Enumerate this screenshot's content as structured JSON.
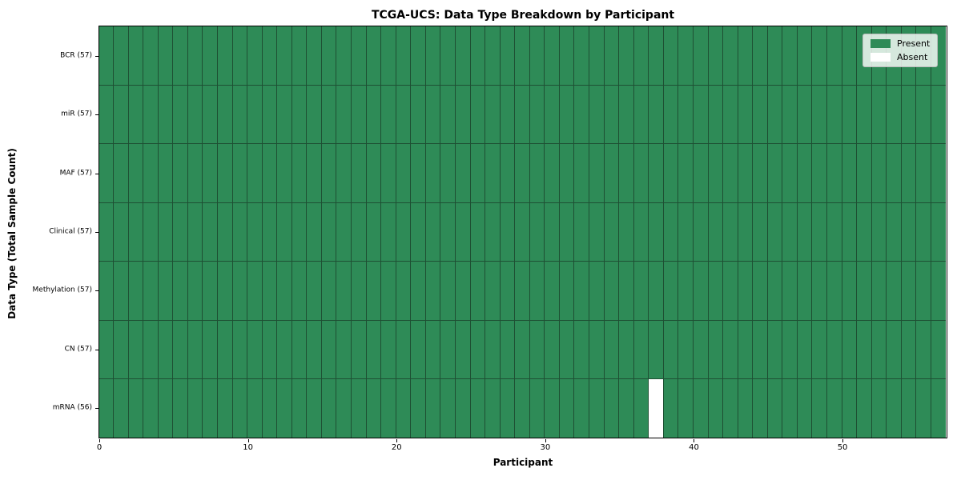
{
  "chart_data": {
    "type": "heatmap",
    "title": "TCGA-UCS: Data Type Breakdown by Participant",
    "xlabel": "Participant",
    "ylabel": "Data Type (Total Sample Count)",
    "x_range": [
      0,
      57
    ],
    "n_participants": 57,
    "x_ticks": [
      0,
      10,
      20,
      30,
      40,
      50
    ],
    "grid": true,
    "legend_position": "upper right",
    "rows": [
      {
        "label": "BCR (57)",
        "data_type": "BCR",
        "total": 57,
        "absent_participants": []
      },
      {
        "label": "miR (57)",
        "data_type": "miR",
        "total": 57,
        "absent_participants": []
      },
      {
        "label": "MAF (57)",
        "data_type": "MAF",
        "total": 57,
        "absent_participants": []
      },
      {
        "label": "Clinical (57)",
        "data_type": "Clinical",
        "total": 57,
        "absent_participants": []
      },
      {
        "label": "Methylation (57)",
        "data_type": "Methylation",
        "total": 57,
        "absent_participants": []
      },
      {
        "label": "CN (57)",
        "data_type": "CN",
        "total": 57,
        "absent_participants": []
      },
      {
        "label": "mRNA (56)",
        "data_type": "mRNA",
        "total": 56,
        "absent_participants": [
          37
        ]
      }
    ],
    "legend": [
      {
        "label": "Present",
        "color": "#2e8b57"
      },
      {
        "label": "Absent",
        "color": "#ffffff"
      }
    ],
    "colors": {
      "present": "#2e8b57",
      "absent": "#ffffff",
      "cell_edge": "#1e4f33",
      "spine": "#000000",
      "legend_bg": "rgba(255,255,255,0.8)",
      "legend_border": "#bdbdbd"
    }
  }
}
